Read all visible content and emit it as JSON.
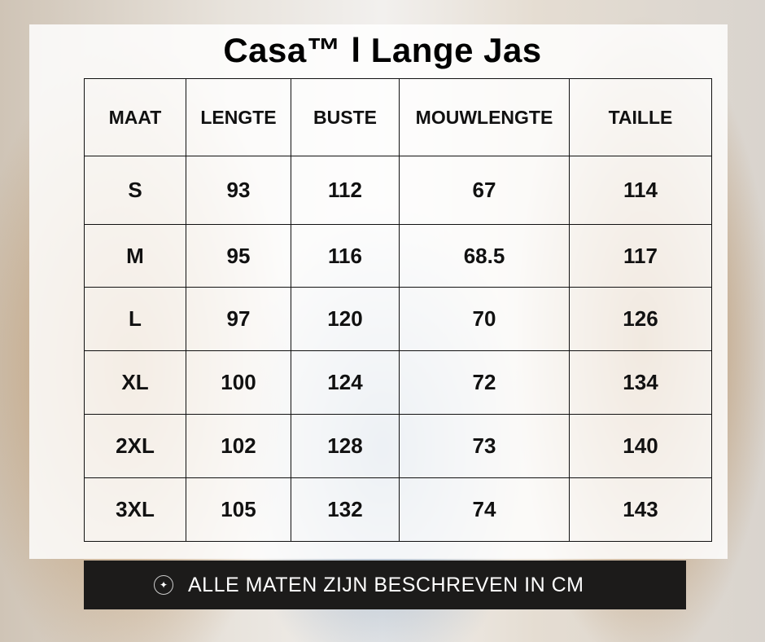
{
  "title": "Casa™ l Lange Jas",
  "table": {
    "headers": [
      "MAAT",
      "LENGTE",
      "BUSTE",
      "MOUWLENGTE",
      "TAILLE"
    ],
    "rows": [
      [
        "S",
        "93",
        "112",
        "67",
        "114"
      ],
      [
        "M",
        "95",
        "116",
        "68.5",
        "117"
      ],
      [
        "L",
        "97",
        "120",
        "70",
        "126"
      ],
      [
        "XL",
        "100",
        "124",
        "72",
        "134"
      ],
      [
        "2XL",
        "102",
        "128",
        "73",
        "140"
      ],
      [
        "3XL",
        "105",
        "132",
        "74",
        "143"
      ]
    ]
  },
  "footer": {
    "icon": "sparkle-icon",
    "text": "ALLE MATEN ZIJN BESCHREVEN IN CM"
  }
}
